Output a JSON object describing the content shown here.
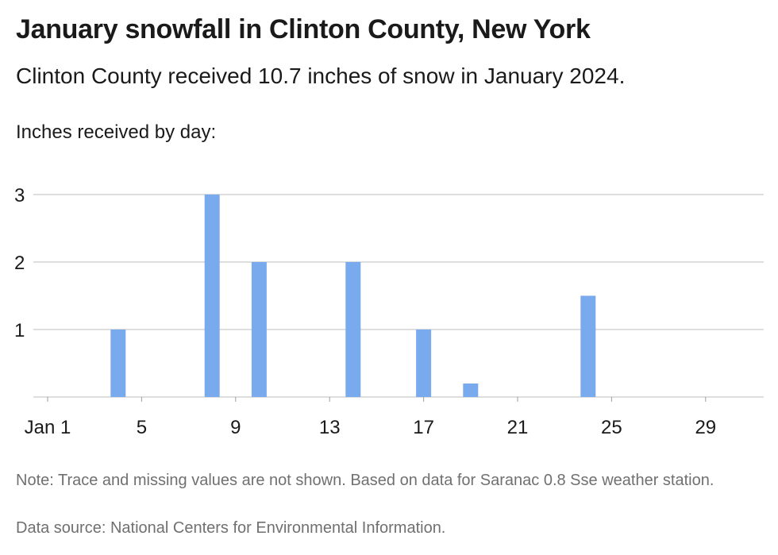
{
  "header": {
    "title": "January snowfall in Clinton County, New York",
    "subtitle": "Clinton County received 10.7 inches of snow in January 2024."
  },
  "chart_data": {
    "type": "bar",
    "title": "January snowfall in Clinton County, New York",
    "subtitle": "Clinton County received 10.7 inches of snow in January 2024.",
    "ylabel": "Inches received by day:",
    "xlabel": "",
    "x_range": [
      1,
      31
    ],
    "ylim": [
      0,
      3
    ],
    "y_ticks": [
      1,
      2,
      3
    ],
    "x_ticks": [
      {
        "day": 1,
        "label": "Jan 1"
      },
      {
        "day": 5,
        "label": "5"
      },
      {
        "day": 9,
        "label": "9"
      },
      {
        "day": 13,
        "label": "13"
      },
      {
        "day": 17,
        "label": "17"
      },
      {
        "day": 21,
        "label": "21"
      },
      {
        "day": 25,
        "label": "25"
      },
      {
        "day": 29,
        "label": "29"
      }
    ],
    "grid": true,
    "bar_color": "#7aaaee",
    "data": [
      {
        "day": 4,
        "value": 1.0
      },
      {
        "day": 8,
        "value": 3.0
      },
      {
        "day": 10,
        "value": 2.0
      },
      {
        "day": 14,
        "value": 2.0
      },
      {
        "day": 17,
        "value": 1.0
      },
      {
        "day": 19,
        "value": 0.2
      },
      {
        "day": 24,
        "value": 1.5
      }
    ]
  },
  "footer": {
    "note": "Note: Trace and missing values are not shown. Based on data for Saranac 0.8 Sse weather station.",
    "source": "Data source: National Centers for Environmental Information."
  }
}
